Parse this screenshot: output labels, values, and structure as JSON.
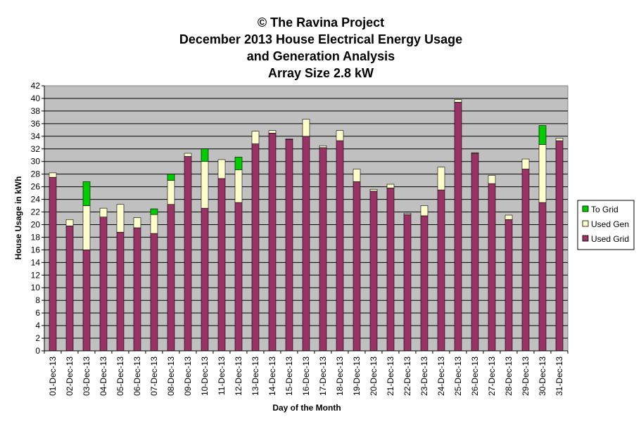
{
  "chart_data": {
    "type": "bar",
    "stacked": true,
    "title_lines": [
      "© The Ravina Project",
      "December 2013 House Electrical Energy Usage",
      "and Generation Analysis",
      "Array Size 2.8 kW"
    ],
    "xlabel": "Day of the Month",
    "ylabel": "House Usage in kWh",
    "ylim": [
      0,
      42
    ],
    "ytick_step": 2,
    "grid": true,
    "legend_position": "right",
    "colors": {
      "plot_bg": "#c0c0c0",
      "used_grid": "#993366",
      "used_gen": "#ffffcc",
      "to_grid": "#00cc00"
    },
    "categories": [
      "01-Dec-13",
      "02-Dec-13",
      "03-Dec-13",
      "04-Dec-13",
      "05-Dec-13",
      "06-Dec-13",
      "07-Dec-13",
      "08-Dec-13",
      "09-Dec-13",
      "10-Dec-13",
      "11-Dec-13",
      "12-Dec-13",
      "13-Dec-13",
      "14-Dec-13",
      "15-Dec-13",
      "16-Dec-13",
      "17-Dec-13",
      "18-Dec-13",
      "19-Dec-13",
      "20-Dec-13",
      "21-Dec-13",
      "22-Dec-13",
      "23-Dec-13",
      "24-Dec-13",
      "25-Dec-13",
      "26-Dec-13",
      "27-Dec-13",
      "28-Dec-13",
      "29-Dec-13",
      "30-Dec-13",
      "31-Dec-13"
    ],
    "series": [
      {
        "name": "Used Grid",
        "values": [
          27.5,
          19.8,
          16.0,
          21.2,
          18.8,
          19.5,
          18.6,
          23.2,
          30.8,
          22.6,
          27.3,
          23.5,
          32.8,
          34.5,
          33.5,
          34.0,
          32.2,
          33.3,
          26.8,
          25.3,
          25.8,
          21.6,
          21.4,
          25.5,
          39.4,
          31.3,
          26.5,
          20.8,
          28.8,
          23.5,
          33.3
        ]
      },
      {
        "name": "Used Gen",
        "values": [
          0.7,
          1.0,
          7.0,
          1.4,
          4.4,
          1.6,
          3.0,
          3.8,
          0.5,
          7.4,
          3.0,
          5.2,
          2.0,
          0.4,
          0.1,
          2.7,
          0.3,
          1.6,
          2.0,
          0.3,
          0.6,
          0.2,
          1.6,
          3.6,
          0.4,
          0.1,
          1.3,
          0.7,
          1.6,
          9.2,
          0.4
        ]
      },
      {
        "name": "To Grid",
        "values": [
          0,
          0,
          3.8,
          0,
          0,
          0,
          0.9,
          1.0,
          0,
          2.0,
          0,
          2.0,
          0,
          0,
          0,
          0,
          0,
          0,
          0,
          0,
          0,
          0,
          0,
          0,
          0,
          0,
          0,
          0,
          0,
          3.0,
          0
        ]
      }
    ],
    "legend_order": [
      "To Grid",
      "Used Gen",
      "Used Grid"
    ]
  }
}
